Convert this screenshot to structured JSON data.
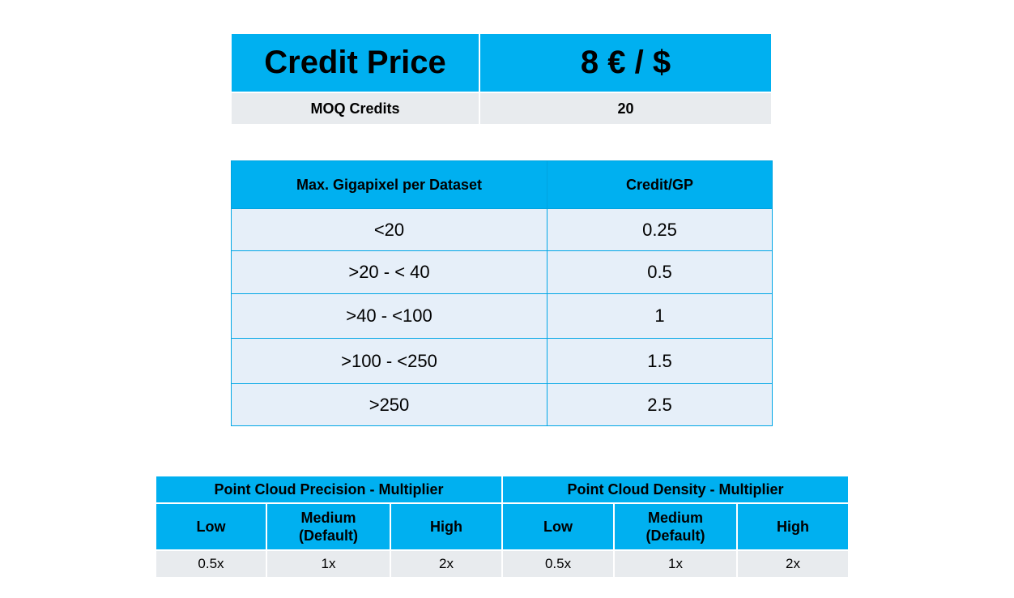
{
  "credit_table": {
    "title": "Credit Price",
    "price": "8 € / $",
    "moq_label": "MOQ Credits",
    "moq_value": "20"
  },
  "gigapixel_table": {
    "headers": [
      "Max. Gigapixel per Dataset",
      "Credit/GP"
    ],
    "rows": [
      {
        "range": "<20",
        "credit": "0.25"
      },
      {
        "range": ">20 - < 40",
        "credit": "0.5"
      },
      {
        "range": ">40 - <100",
        "credit": "1"
      },
      {
        "range": ">100 - <250",
        "credit": "1.5"
      },
      {
        "range": ">250",
        "credit": "2.5"
      }
    ]
  },
  "multiplier_table": {
    "groups": [
      "Point Cloud Precision - Multiplier",
      "Point Cloud Density - Multiplier"
    ],
    "levels": [
      {
        "line1": "Low",
        "line2": ""
      },
      {
        "line1": "Medium",
        "line2": "(Default)"
      },
      {
        "line1": "High",
        "line2": ""
      },
      {
        "line1": "Low",
        "line2": ""
      },
      {
        "line1": "Medium",
        "line2": "(Default)"
      },
      {
        "line1": "High",
        "line2": ""
      }
    ],
    "values": [
      "0.5x",
      "1x",
      "2x",
      "0.5x",
      "1x",
      "2x"
    ]
  },
  "colors": {
    "header_blue": "#00b0f0",
    "row_light_blue": "#e6eff9",
    "row_gray": "#e8ebee"
  }
}
